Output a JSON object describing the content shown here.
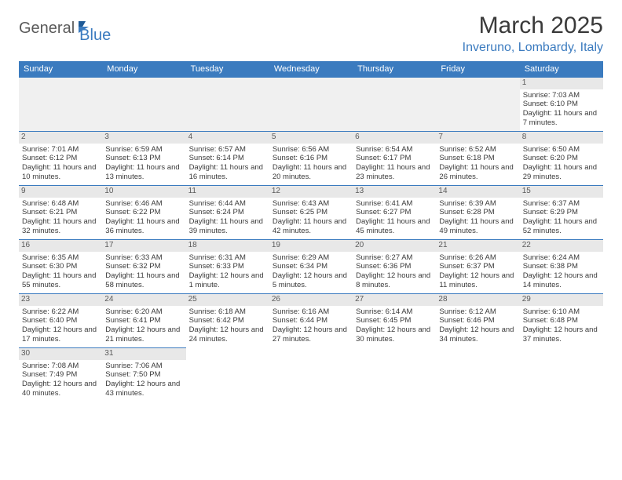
{
  "brand": {
    "part1": "General",
    "part2": "Blue"
  },
  "title": "March 2025",
  "location": "Inveruno, Lombardy, Italy",
  "colors": {
    "header_bg": "#3b7bbf",
    "header_text": "#ffffff",
    "daynum_bg": "#e8e8e8",
    "daynum_text": "#5a5a5a",
    "body_text": "#3a3a3a",
    "blank_bg": "#f0f0f0",
    "border": "#3b7bbf"
  },
  "typography": {
    "title_fontsize": 30,
    "location_fontsize": 16,
    "header_fontsize": 11,
    "cell_fontsize": 9.5
  },
  "days_of_week": [
    "Sunday",
    "Monday",
    "Tuesday",
    "Wednesday",
    "Thursday",
    "Friday",
    "Saturday"
  ],
  "weeks": [
    [
      null,
      null,
      null,
      null,
      null,
      null,
      {
        "n": "1",
        "sr": "7:03 AM",
        "ss": "6:10 PM",
        "dl": "11 hours and 7 minutes."
      }
    ],
    [
      {
        "n": "2",
        "sr": "7:01 AM",
        "ss": "6:12 PM",
        "dl": "11 hours and 10 minutes."
      },
      {
        "n": "3",
        "sr": "6:59 AM",
        "ss": "6:13 PM",
        "dl": "11 hours and 13 minutes."
      },
      {
        "n": "4",
        "sr": "6:57 AM",
        "ss": "6:14 PM",
        "dl": "11 hours and 16 minutes."
      },
      {
        "n": "5",
        "sr": "6:56 AM",
        "ss": "6:16 PM",
        "dl": "11 hours and 20 minutes."
      },
      {
        "n": "6",
        "sr": "6:54 AM",
        "ss": "6:17 PM",
        "dl": "11 hours and 23 minutes."
      },
      {
        "n": "7",
        "sr": "6:52 AM",
        "ss": "6:18 PM",
        "dl": "11 hours and 26 minutes."
      },
      {
        "n": "8",
        "sr": "6:50 AM",
        "ss": "6:20 PM",
        "dl": "11 hours and 29 minutes."
      }
    ],
    [
      {
        "n": "9",
        "sr": "6:48 AM",
        "ss": "6:21 PM",
        "dl": "11 hours and 32 minutes."
      },
      {
        "n": "10",
        "sr": "6:46 AM",
        "ss": "6:22 PM",
        "dl": "11 hours and 36 minutes."
      },
      {
        "n": "11",
        "sr": "6:44 AM",
        "ss": "6:24 PM",
        "dl": "11 hours and 39 minutes."
      },
      {
        "n": "12",
        "sr": "6:43 AM",
        "ss": "6:25 PM",
        "dl": "11 hours and 42 minutes."
      },
      {
        "n": "13",
        "sr": "6:41 AM",
        "ss": "6:27 PM",
        "dl": "11 hours and 45 minutes."
      },
      {
        "n": "14",
        "sr": "6:39 AM",
        "ss": "6:28 PM",
        "dl": "11 hours and 49 minutes."
      },
      {
        "n": "15",
        "sr": "6:37 AM",
        "ss": "6:29 PM",
        "dl": "11 hours and 52 minutes."
      }
    ],
    [
      {
        "n": "16",
        "sr": "6:35 AM",
        "ss": "6:30 PM",
        "dl": "11 hours and 55 minutes."
      },
      {
        "n": "17",
        "sr": "6:33 AM",
        "ss": "6:32 PM",
        "dl": "11 hours and 58 minutes."
      },
      {
        "n": "18",
        "sr": "6:31 AM",
        "ss": "6:33 PM",
        "dl": "12 hours and 1 minute."
      },
      {
        "n": "19",
        "sr": "6:29 AM",
        "ss": "6:34 PM",
        "dl": "12 hours and 5 minutes."
      },
      {
        "n": "20",
        "sr": "6:27 AM",
        "ss": "6:36 PM",
        "dl": "12 hours and 8 minutes."
      },
      {
        "n": "21",
        "sr": "6:26 AM",
        "ss": "6:37 PM",
        "dl": "12 hours and 11 minutes."
      },
      {
        "n": "22",
        "sr": "6:24 AM",
        "ss": "6:38 PM",
        "dl": "12 hours and 14 minutes."
      }
    ],
    [
      {
        "n": "23",
        "sr": "6:22 AM",
        "ss": "6:40 PM",
        "dl": "12 hours and 17 minutes."
      },
      {
        "n": "24",
        "sr": "6:20 AM",
        "ss": "6:41 PM",
        "dl": "12 hours and 21 minutes."
      },
      {
        "n": "25",
        "sr": "6:18 AM",
        "ss": "6:42 PM",
        "dl": "12 hours and 24 minutes."
      },
      {
        "n": "26",
        "sr": "6:16 AM",
        "ss": "6:44 PM",
        "dl": "12 hours and 27 minutes."
      },
      {
        "n": "27",
        "sr": "6:14 AM",
        "ss": "6:45 PM",
        "dl": "12 hours and 30 minutes."
      },
      {
        "n": "28",
        "sr": "6:12 AM",
        "ss": "6:46 PM",
        "dl": "12 hours and 34 minutes."
      },
      {
        "n": "29",
        "sr": "6:10 AM",
        "ss": "6:48 PM",
        "dl": "12 hours and 37 minutes."
      }
    ],
    [
      {
        "n": "30",
        "sr": "7:08 AM",
        "ss": "7:49 PM",
        "dl": "12 hours and 40 minutes."
      },
      {
        "n": "31",
        "sr": "7:06 AM",
        "ss": "7:50 PM",
        "dl": "12 hours and 43 minutes."
      },
      null,
      null,
      null,
      null,
      null
    ]
  ],
  "labels": {
    "sunrise": "Sunrise: ",
    "sunset": "Sunset: ",
    "daylight": "Daylight: "
  }
}
